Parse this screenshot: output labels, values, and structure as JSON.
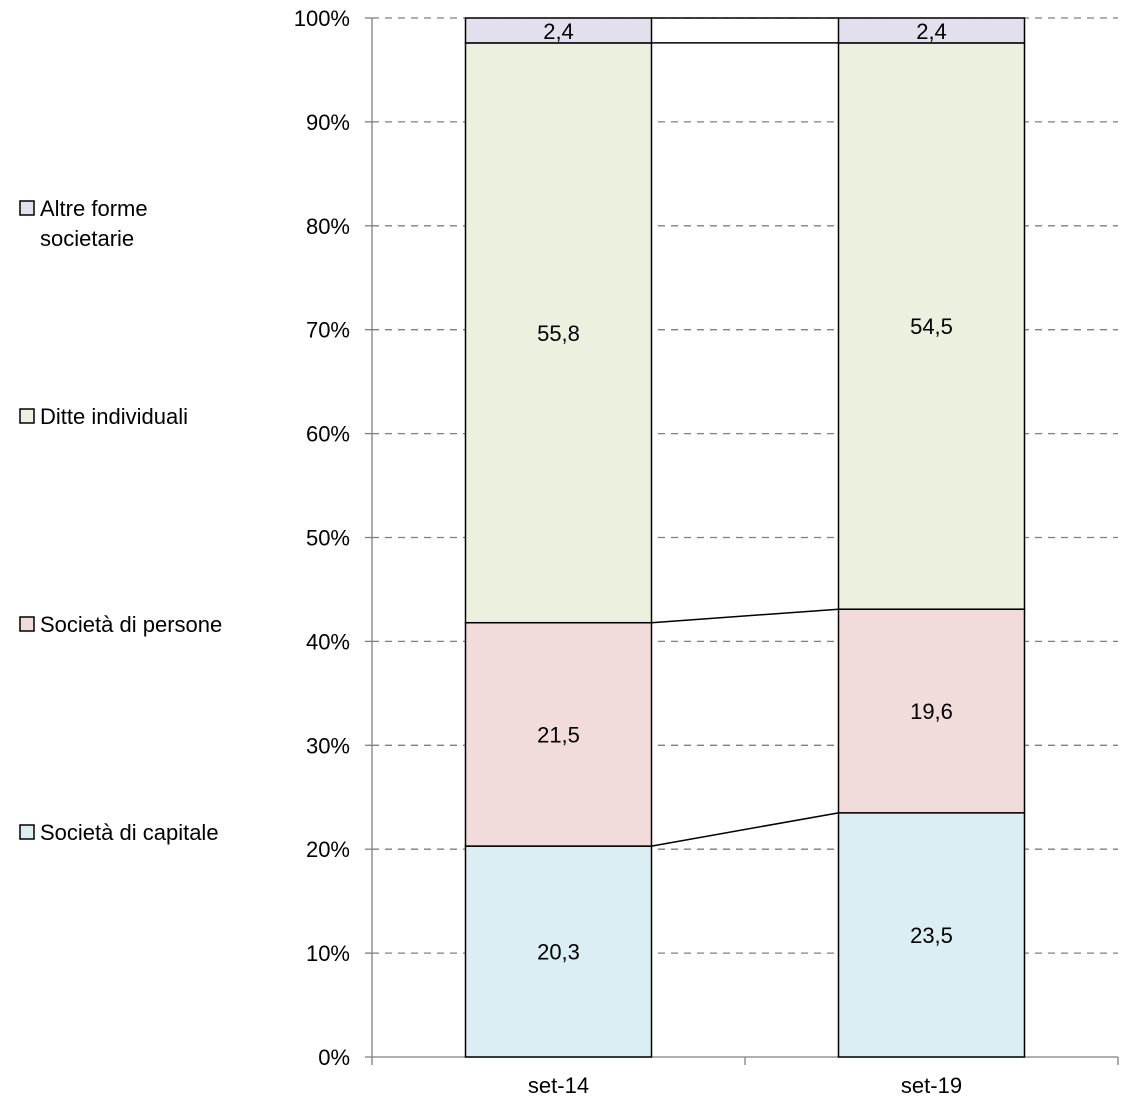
{
  "chart_data": {
    "type": "bar",
    "stacked": true,
    "normalized_percent": true,
    "categories": [
      "set-14",
      "set-19"
    ],
    "series": [
      {
        "name": "Società di capitale",
        "values": [
          20.3,
          23.5
        ],
        "labels": [
          "20,3",
          "23,5"
        ],
        "color": "#daeef3"
      },
      {
        "name": "Società di persone",
        "values": [
          21.5,
          19.6
        ],
        "labels": [
          "21,5",
          "19,6"
        ],
        "color": "#f2dcdb"
      },
      {
        "name": "Ditte individuali",
        "values": [
          55.8,
          54.5
        ],
        "labels": [
          "55,8",
          "54,5"
        ],
        "color": "#ebf1de"
      },
      {
        "name": "Altre forme societarie",
        "values": [
          2.4,
          2.4
        ],
        "labels": [
          "2,4",
          "2,4"
        ],
        "color": "#e4dfec"
      }
    ],
    "legend_lines": [
      [
        "Altre forme",
        "societarie"
      ],
      [
        "Ditte individuali"
      ],
      [
        "Società di persone"
      ],
      [
        "Società di capitale"
      ]
    ],
    "yticks": [
      0,
      10,
      20,
      30,
      40,
      50,
      60,
      70,
      80,
      90,
      100
    ],
    "ytick_labels": [
      "0%",
      "10%",
      "20%",
      "30%",
      "40%",
      "50%",
      "60%",
      "70%",
      "80%",
      "90%",
      "100%"
    ],
    "ylim": [
      0,
      100
    ],
    "grid": true,
    "series_lines": true,
    "legend_position": "left",
    "title": "",
    "xlabel": "",
    "ylabel": ""
  }
}
